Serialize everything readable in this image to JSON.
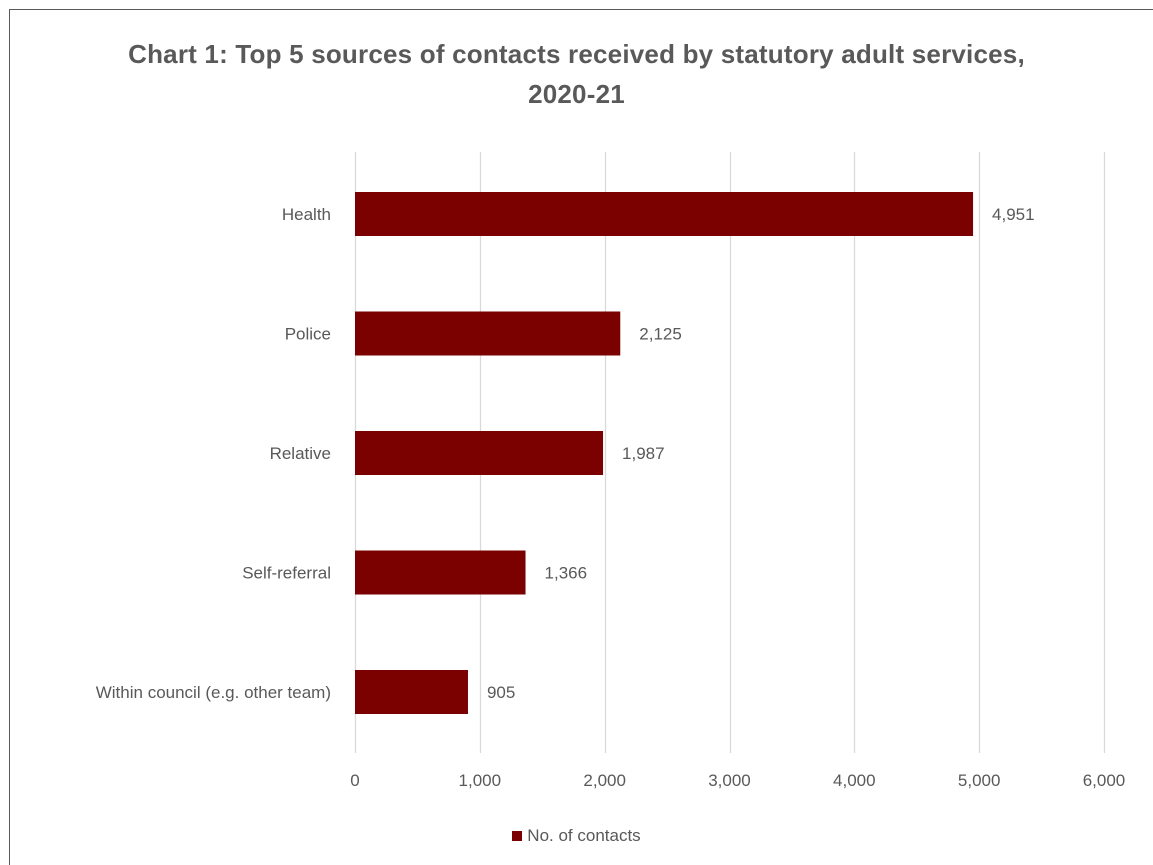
{
  "chart_data": {
    "type": "bar",
    "orientation": "horizontal",
    "title_line1": "Chart 1: Top 5 sources of contacts received by statutory adult services,",
    "title_line2": "2020-21",
    "categories": [
      "Health",
      "Police",
      "Relative",
      "Self-referral",
      "Within council (e.g. other team)"
    ],
    "series": [
      {
        "name": "No. of contacts",
        "values": [
          4951,
          2125,
          1987,
          1366,
          905
        ],
        "labels": [
          "4,951",
          "2,125",
          "1,987",
          "1,366",
          "905"
        ],
        "color": "#7B0000"
      }
    ],
    "xlim": [
      0,
      6000
    ],
    "xticks": [
      0,
      1000,
      2000,
      3000,
      4000,
      5000,
      6000
    ],
    "xtick_labels": [
      "0",
      "1,000",
      "2,000",
      "3,000",
      "4,000",
      "5,000",
      "6,000"
    ],
    "grid": "vertical",
    "legend": "bottom",
    "gridline_color": "#D9D9D9",
    "text_color": "#595959"
  }
}
